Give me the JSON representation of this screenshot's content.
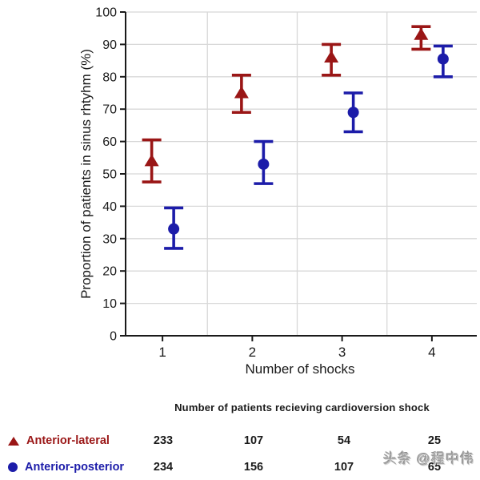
{
  "watermark": "头条 @程中伟",
  "colors": {
    "anterior_lateral": "#9A1616",
    "anterior_posterior": "#1C1CA9",
    "grid": "#D8D8D8",
    "axis": "#1A1A1A",
    "text": "#1A1A1A",
    "watermark_gray": "#A3A3A3"
  },
  "chart_data": {
    "type": "scatter",
    "title": "",
    "xlabel": "Number of shocks",
    "ylabel": "Proportion of patients in sinus rhtyhm (%)",
    "x_ticks": [
      "1",
      "2",
      "3",
      "4"
    ],
    "y_ticks": [
      0,
      10,
      20,
      30,
      40,
      50,
      60,
      70,
      80,
      90,
      100
    ],
    "ylim": [
      0,
      100
    ],
    "grid": true,
    "legend_position": "bottom-left",
    "series": [
      {
        "name": "Anterior-lateral",
        "marker": "triangle",
        "color": "#9A1616",
        "x": [
          1,
          2,
          3,
          4
        ],
        "y": [
          54,
          75,
          86,
          93
        ],
        "ci_low": [
          47.5,
          69,
          80.5,
          88.5
        ],
        "ci_high": [
          60.5,
          80.5,
          90,
          95.5
        ]
      },
      {
        "name": "Anterior-posterior",
        "marker": "circle",
        "color": "#1C1CA9",
        "x": [
          1,
          2,
          3,
          4
        ],
        "y": [
          33,
          53,
          69,
          85.5
        ],
        "ci_low": [
          27,
          47,
          63,
          80
        ],
        "ci_high": [
          39.5,
          60,
          75,
          89.5
        ]
      }
    ]
  },
  "table": {
    "header": "Number of patients recieving cardioversion shock",
    "rows": [
      {
        "label": "Anterior-lateral",
        "marker": "triangle",
        "color": "#9A1616",
        "values": [
          "233",
          "107",
          "54",
          "25"
        ]
      },
      {
        "label": "Anterior-posterior",
        "marker": "circle",
        "color": "#1C1CA9",
        "values": [
          "234",
          "156",
          "107",
          "65"
        ]
      }
    ]
  }
}
